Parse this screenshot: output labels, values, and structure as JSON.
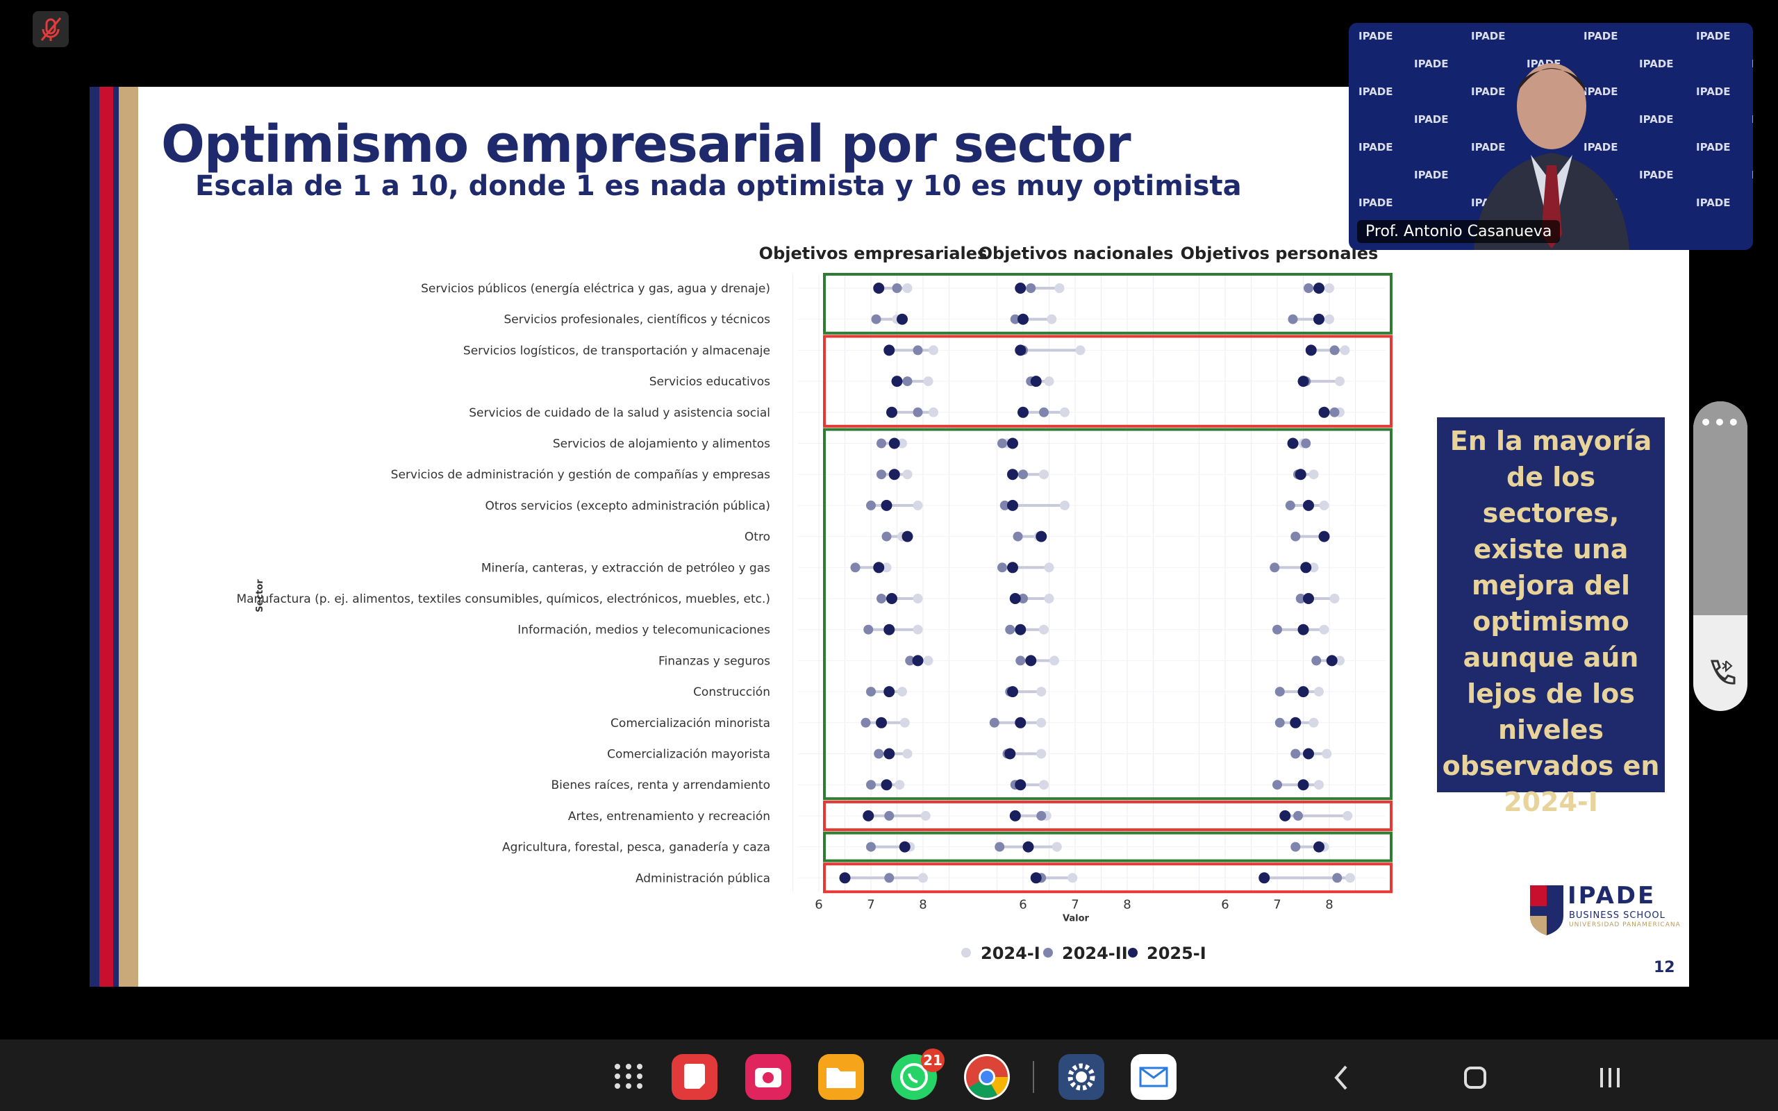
{
  "slide": {
    "title": "Optimismo empresarial por sector",
    "subtitle": "Escala de 1 a 10, donde 1 es nada optimista y 10 es muy optimista",
    "page_number": "12",
    "note_lines": [
      "En la mayoría",
      "de los sectores,",
      "existe una",
      "mejora del",
      "optimismo",
      "aunque aún",
      "lejos de los",
      "niveles",
      "observados en",
      "2024-I"
    ],
    "logo": {
      "name": "IPADE",
      "sub": "BUSINESS SCHOOL",
      "sub2": "UNIVERSIDAD PANAMERICANA"
    }
  },
  "video": {
    "participant_name": "Prof. Antonio Casanueva",
    "backdrop_text": "IPADE"
  },
  "taskbar": {
    "whatsapp_badge": "21"
  },
  "colors": {
    "navy": "#1e2a6b",
    "red_stripe": "#c8102e",
    "gold": "#b89b5e",
    "s2024I": "#d6d8e6",
    "s2024II": "#7f84ad",
    "s2025I": "#1a1f5e",
    "green_box": "#2e7d32",
    "red_box": "#e53935"
  },
  "chart_data": {
    "type": "dot-plot",
    "ylabel": "Sector",
    "xlabel": "Valor",
    "panels": [
      "Objetivos empresariales",
      "Objetivos nacionales",
      "Objetivos personales"
    ],
    "x_ticks": [
      [
        "6",
        "7",
        "8"
      ],
      [
        "6",
        "7",
        "8"
      ],
      [
        "6",
        "7",
        "8"
      ]
    ],
    "series_names": [
      "2024-I",
      "2024-II",
      "2025-I"
    ],
    "categories": [
      "Servicios públicos (energía eléctrica y gas, agua y drenaje)",
      "Servicios profesionales, científicos y técnicos",
      "Servicios logísticos, de transportación y almacenaje",
      "Servicios educativos",
      "Servicios de cuidado de la salud y asistencia social",
      "Servicios de alojamiento y alimentos",
      "Servicios de administración y gestión de compañías y empresas",
      "Otros servicios (excepto administración pública)",
      "Otro",
      "Minería, canteras, y extracción de petróleo y gas",
      "Manufactura (p. ej. alimentos, textiles consumibles, químicos, electrónicos, muebles, etc.)",
      "Información, medios y telecomunicaciones",
      "Finanzas y seguros",
      "Construcción",
      "Comercialización minorista",
      "Comercialización mayorista",
      "Bienes raíces, renta y arrendamiento",
      "Artes, entrenamiento y recreación",
      "Agricultura, forestal, pesca, ganadería y caza",
      "Administración pública"
    ],
    "values": [
      [
        [
          7.7,
          7.5,
          7.15
        ],
        [
          6.7,
          6.15,
          5.95
        ],
        [
          8.0,
          7.6,
          7.8
        ]
      ],
      [
        [
          7.5,
          7.1,
          7.6
        ],
        [
          6.55,
          5.85,
          6.0
        ],
        [
          8.0,
          7.3,
          7.8
        ]
      ],
      [
        [
          8.2,
          7.9,
          7.35
        ],
        [
          7.1,
          6.0,
          5.95
        ],
        [
          8.3,
          8.1,
          7.65
        ]
      ],
      [
        [
          8.1,
          7.7,
          7.5
        ],
        [
          6.5,
          6.15,
          6.25
        ],
        [
          8.2,
          7.55,
          7.5
        ]
      ],
      [
        [
          8.2,
          7.9,
          7.4
        ],
        [
          6.8,
          6.4,
          6.0
        ],
        [
          8.2,
          8.1,
          7.9
        ]
      ],
      [
        [
          7.6,
          7.2,
          7.45
        ],
        [
          5.7,
          5.6,
          5.8
        ],
        [
          7.5,
          7.55,
          7.3
        ]
      ],
      [
        [
          7.7,
          7.2,
          7.45
        ],
        [
          6.4,
          6.0,
          5.8
        ],
        [
          7.7,
          7.4,
          7.45
        ]
      ],
      [
        [
          7.9,
          7.0,
          7.3
        ],
        [
          6.8,
          5.65,
          5.8
        ],
        [
          7.9,
          7.25,
          7.6
        ]
      ],
      [
        [
          7.6,
          7.3,
          7.7
        ],
        [
          6.3,
          5.9,
          6.35
        ],
        [
          7.9,
          7.35,
          7.9
        ]
      ],
      [
        [
          7.3,
          6.7,
          7.15
        ],
        [
          6.5,
          5.6,
          5.8
        ],
        [
          7.7,
          6.95,
          7.55
        ]
      ],
      [
        [
          7.9,
          7.2,
          7.4
        ],
        [
          6.5,
          6.0,
          5.85
        ],
        [
          8.1,
          7.45,
          7.6
        ]
      ],
      [
        [
          7.9,
          6.95,
          7.35
        ],
        [
          6.4,
          5.75,
          5.95
        ],
        [
          7.9,
          7.0,
          7.5
        ]
      ],
      [
        [
          8.1,
          7.75,
          7.9
        ],
        [
          6.6,
          5.95,
          6.15
        ],
        [
          8.2,
          7.75,
          8.05
        ]
      ],
      [
        [
          7.6,
          7.0,
          7.35
        ],
        [
          6.35,
          5.75,
          5.8
        ],
        [
          7.8,
          7.05,
          7.5
        ]
      ],
      [
        [
          7.65,
          6.9,
          7.2
        ],
        [
          6.35,
          5.45,
          5.95
        ],
        [
          7.7,
          7.05,
          7.35
        ]
      ],
      [
        [
          7.7,
          7.15,
          7.35
        ],
        [
          6.35,
          5.7,
          5.75
        ],
        [
          7.95,
          7.35,
          7.6
        ]
      ],
      [
        [
          7.55,
          7.0,
          7.3
        ],
        [
          6.4,
          5.85,
          5.95
        ],
        [
          7.8,
          7.0,
          7.5
        ]
      ],
      [
        [
          8.05,
          7.35,
          6.95
        ],
        [
          6.45,
          6.35,
          5.85
        ],
        [
          8.35,
          7.4,
          7.15
        ]
      ],
      [
        [
          7.75,
          7.0,
          7.65
        ],
        [
          6.65,
          5.55,
          6.1
        ],
        [
          7.9,
          7.35,
          7.8
        ]
      ],
      [
        [
          8.0,
          7.35,
          6.5
        ],
        [
          6.95,
          6.35,
          6.25
        ],
        [
          8.4,
          8.15,
          6.75
        ]
      ]
    ],
    "boxes": [
      {
        "from": 0,
        "to": 1,
        "color": "green"
      },
      {
        "from": 2,
        "to": 4,
        "color": "red"
      },
      {
        "from": 5,
        "to": 16,
        "color": "green"
      },
      {
        "from": 17,
        "to": 17,
        "color": "red"
      },
      {
        "from": 18,
        "to": 18,
        "color": "green"
      },
      {
        "from": 19,
        "to": 19,
        "color": "red"
      }
    ]
  }
}
